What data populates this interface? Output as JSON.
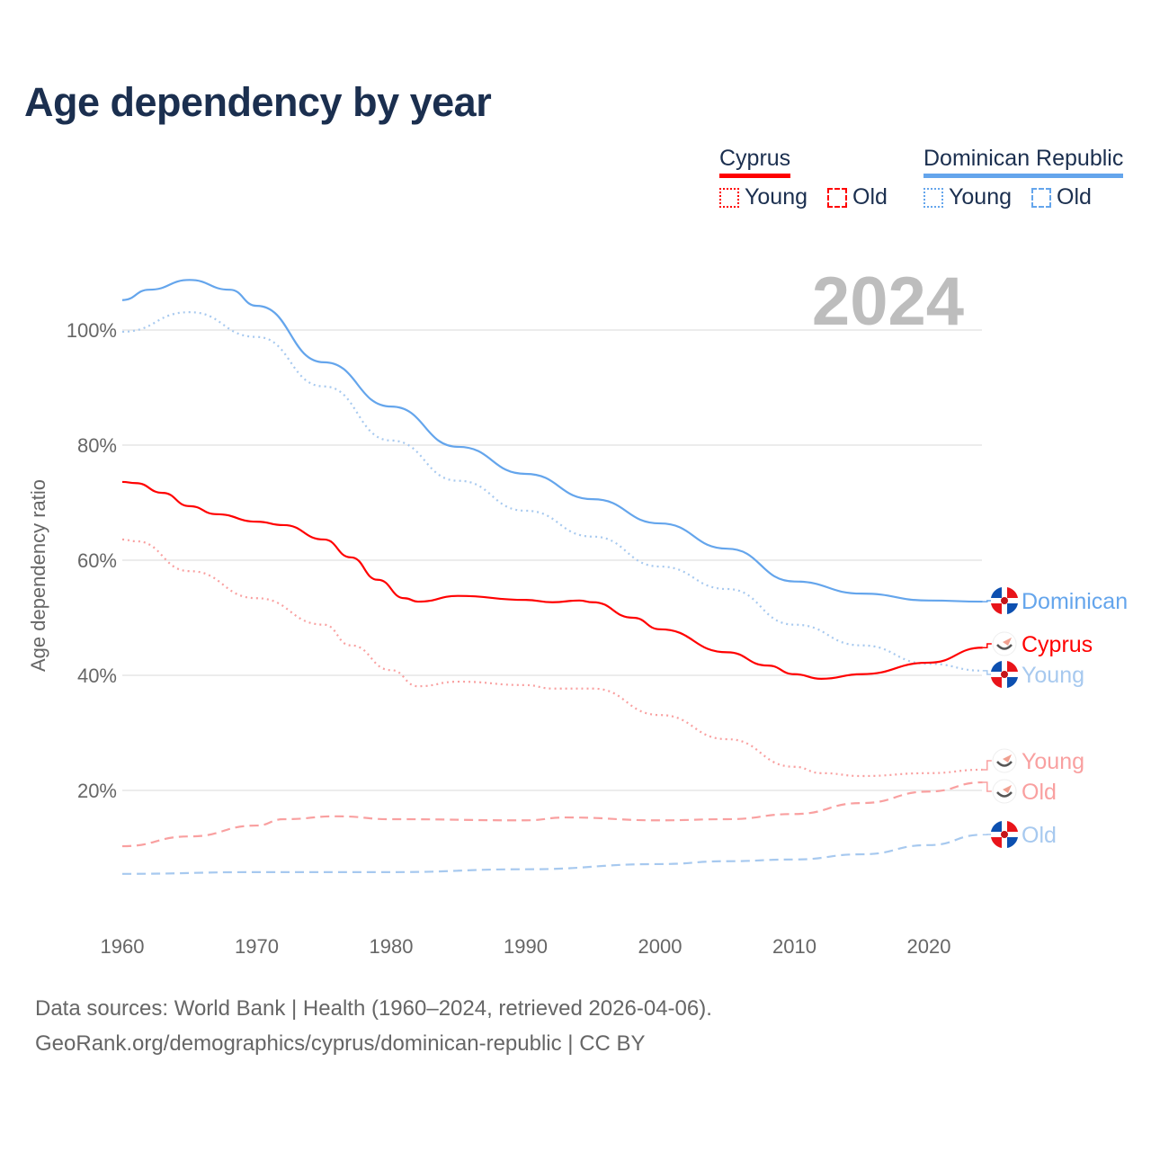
{
  "title": "Age dependency by year",
  "year_label": "2024",
  "legend": {
    "countries": [
      {
        "name": "Cyprus",
        "color": "#ff0000",
        "items": [
          "Young",
          "Old"
        ]
      },
      {
        "name": "Dominican Republic",
        "color": "#64a5ec",
        "items": [
          "Young",
          "Old"
        ]
      }
    ]
  },
  "footer": {
    "line1": "Data sources: World Bank | Health (1960–2024, retrieved 2026-04-06).",
    "line2": "GeoRank.org/demographics/cyprus/dominican-republic | CC BY"
  },
  "chart_data": {
    "type": "line",
    "title": "Age dependency by year",
    "xlabel": "",
    "ylabel": "Age dependency ratio",
    "xlim": [
      1960,
      2024
    ],
    "ylim": [
      0,
      110
    ],
    "x_ticks": [
      "1960",
      "1970",
      "1980",
      "1990",
      "2000",
      "2010",
      "2020"
    ],
    "y_ticks": [
      "20%",
      "40%",
      "60%",
      "80%",
      "100%"
    ],
    "grid": true,
    "series": [
      {
        "name": "Dominican Republic",
        "end_label": "Dominican",
        "color": "#64a5ec",
        "dash": "solid",
        "points": [
          [
            1960,
            105.2
          ],
          [
            1962,
            107
          ],
          [
            1965,
            108.7
          ],
          [
            1968,
            107
          ],
          [
            1970,
            104.2
          ],
          [
            1975,
            94.4
          ],
          [
            1980,
            86.7
          ],
          [
            1985,
            79.7
          ],
          [
            1990,
            75
          ],
          [
            1995,
            70.6
          ],
          [
            2000,
            66.4
          ],
          [
            2005,
            62
          ],
          [
            2010,
            56.3
          ],
          [
            2015,
            54.2
          ],
          [
            2020,
            53
          ],
          [
            2024,
            52.8
          ]
        ]
      },
      {
        "name": "Dominican Republic Young",
        "end_label": "Young",
        "color": "#a7c9ef",
        "dash": "dotted",
        "points": [
          [
            1960,
            99.7
          ],
          [
            1965,
            103.1
          ],
          [
            1970,
            98.8
          ],
          [
            1975,
            90.2
          ],
          [
            1980,
            80.8
          ],
          [
            1985,
            73.8
          ],
          [
            1990,
            68.6
          ],
          [
            1995,
            64.1
          ],
          [
            2000,
            58.9
          ],
          [
            2005,
            55
          ],
          [
            2010,
            48.8
          ],
          [
            2015,
            45.2
          ],
          [
            2020,
            42
          ],
          [
            2024,
            40.8
          ]
        ]
      },
      {
        "name": "Dominican Republic Old",
        "end_label": "Old",
        "color": "#a7c9ef",
        "dash": "dashed",
        "points": [
          [
            1960,
            5.5
          ],
          [
            1970,
            5.8
          ],
          [
            1980,
            5.8
          ],
          [
            1990,
            6.3
          ],
          [
            2000,
            7.2
          ],
          [
            2005,
            7.7
          ],
          [
            2010,
            8
          ],
          [
            2015,
            8.9
          ],
          [
            2020,
            10.5
          ],
          [
            2024,
            12.3
          ]
        ]
      },
      {
        "name": "Cyprus",
        "end_label": "Cyprus",
        "color": "#ff0000",
        "dash": "solid",
        "points": [
          [
            1960,
            73.6
          ],
          [
            1961,
            73.4
          ],
          [
            1963,
            71.7
          ],
          [
            1965,
            69.4
          ],
          [
            1967,
            68
          ],
          [
            1970,
            66.7
          ],
          [
            1972,
            66.1
          ],
          [
            1975,
            63.6
          ],
          [
            1977,
            60.5
          ],
          [
            1979,
            56.6
          ],
          [
            1981,
            53.4
          ],
          [
            1982,
            52.8
          ],
          [
            1985,
            53.8
          ],
          [
            1990,
            53.1
          ],
          [
            1992,
            52.7
          ],
          [
            1994,
            53
          ],
          [
            1995,
            52.7
          ],
          [
            1998,
            50
          ],
          [
            2000,
            48
          ],
          [
            2005,
            44
          ],
          [
            2008,
            41.7
          ],
          [
            2010,
            40.2
          ],
          [
            2012,
            39.4
          ],
          [
            2015,
            40.2
          ],
          [
            2020,
            42.2
          ],
          [
            2024,
            44.8
          ]
        ]
      },
      {
        "name": "Cyprus Young",
        "end_label": "Young",
        "color": "#f9a0a0",
        "dash": "dotted",
        "points": [
          [
            1960,
            63.6
          ],
          [
            1961,
            63.3
          ],
          [
            1965,
            58.1
          ],
          [
            1970,
            53.4
          ],
          [
            1975,
            48.8
          ],
          [
            1977,
            45.2
          ],
          [
            1980,
            40.9
          ],
          [
            1982,
            38.1
          ],
          [
            1985,
            38.9
          ],
          [
            1990,
            38.3
          ],
          [
            1992,
            37.7
          ],
          [
            1995,
            37.7
          ],
          [
            2000,
            33.1
          ],
          [
            2005,
            28.9
          ],
          [
            2010,
            24.1
          ],
          [
            2012,
            23
          ],
          [
            2015,
            22.5
          ],
          [
            2020,
            23
          ],
          [
            2024,
            23.6
          ]
        ]
      },
      {
        "name": "Cyprus Old",
        "end_label": "Old",
        "color": "#f9a0a0",
        "dash": "dashed",
        "points": [
          [
            1960,
            10.3
          ],
          [
            1965,
            12
          ],
          [
            1970,
            13.9
          ],
          [
            1972,
            15
          ],
          [
            1976,
            15.5
          ],
          [
            1980,
            15
          ],
          [
            1990,
            14.8
          ],
          [
            1993,
            15.3
          ],
          [
            2000,
            14.8
          ],
          [
            2005,
            15
          ],
          [
            2010,
            15.9
          ],
          [
            2015,
            17.8
          ],
          [
            2020,
            19.8
          ],
          [
            2024,
            21.4
          ]
        ]
      }
    ]
  }
}
